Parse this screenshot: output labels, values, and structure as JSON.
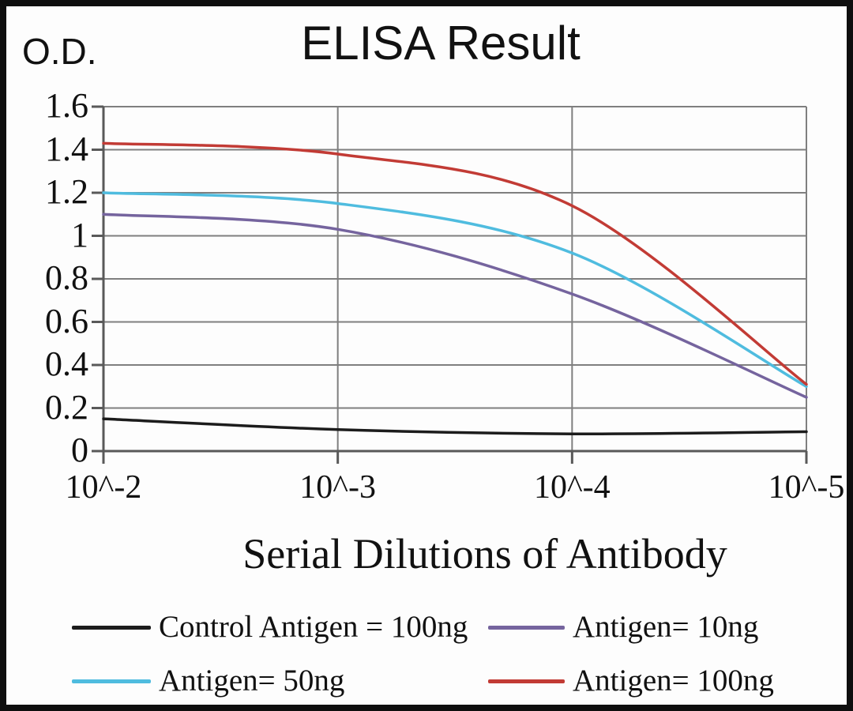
{
  "title": "ELISA Result",
  "y_axis_label": "O.D.",
  "x_axis_title": "Serial Dilutions of Antibody",
  "colors": {
    "grid": "#7f7f7f",
    "axis": "#595959",
    "text": "#111111",
    "background": "#fdfdfd",
    "frame_border": "#0e0e0e"
  },
  "chart_data": {
    "type": "line",
    "title": "ELISA Result",
    "xlabel": "Serial Dilutions of Antibody",
    "ylabel": "O.D.",
    "categories": [
      "10^-2",
      "10^-3",
      "10^-4",
      "10^-5"
    ],
    "y_ticks": [
      "1.6",
      "1.4",
      "1.2",
      "1",
      "0.8",
      "0.6",
      "0.4",
      "0.2",
      "0"
    ],
    "ylim": [
      0,
      1.6
    ],
    "grid": true,
    "smooth_lines": true,
    "legend_position": "bottom",
    "series": [
      {
        "name": "Control Antigen = 100ng",
        "color": "#1c1c1c",
        "values": [
          0.15,
          0.1,
          0.08,
          0.09
        ]
      },
      {
        "name": "Antigen= 10ng",
        "color": "#75649e",
        "values": [
          1.1,
          1.03,
          0.73,
          0.25
        ]
      },
      {
        "name": "Antigen= 50ng",
        "color": "#4fbcdf",
        "values": [
          1.2,
          1.15,
          0.92,
          0.3
        ]
      },
      {
        "name": "Antigen= 100ng",
        "color": "#c23b35",
        "values": [
          1.43,
          1.38,
          1.14,
          0.31
        ]
      }
    ]
  }
}
